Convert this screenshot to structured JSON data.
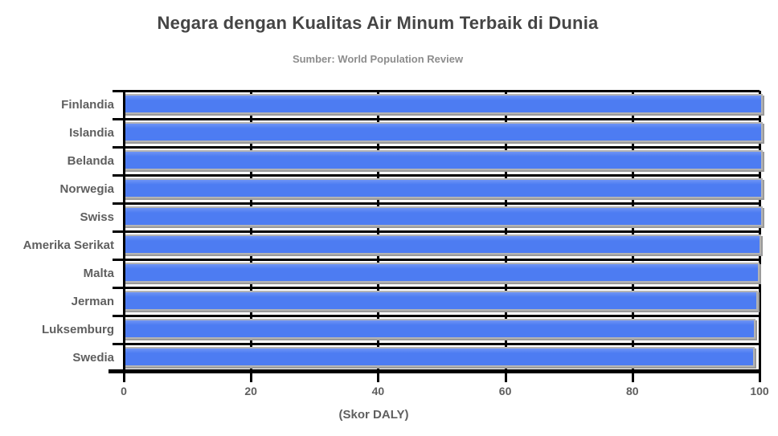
{
  "chart_data": {
    "type": "bar",
    "orientation": "horizontal",
    "title": "Negara dengan Kualitas Air Minum Terbaik di Dunia",
    "subtitle": "Sumber: World Population Review",
    "xlabel": "(Skor DALY)",
    "categories": [
      "Finlandia",
      "Islandia",
      "Belanda",
      "Norwegia",
      "Swiss",
      "Amerika Serikat",
      "Malta",
      "Jerman",
      "Luksemburg",
      "Swedia"
    ],
    "values": [
      100,
      100,
      100,
      100,
      100,
      99.8,
      99.5,
      99.3,
      98.9,
      98.7
    ],
    "xlim": [
      0,
      100
    ],
    "xticks": [
      0,
      20,
      40,
      60,
      80,
      100
    ],
    "grid": true,
    "legend_position": "none",
    "colors": {
      "bar": "#4d7cf2",
      "bar_border": "#b4b4b4",
      "bar_shadow": "#9a9a9a",
      "grid": "#000000",
      "title_text": "#454545",
      "subtitle_text": "#8d8d8d",
      "label_text": "#5f5f5f"
    }
  }
}
